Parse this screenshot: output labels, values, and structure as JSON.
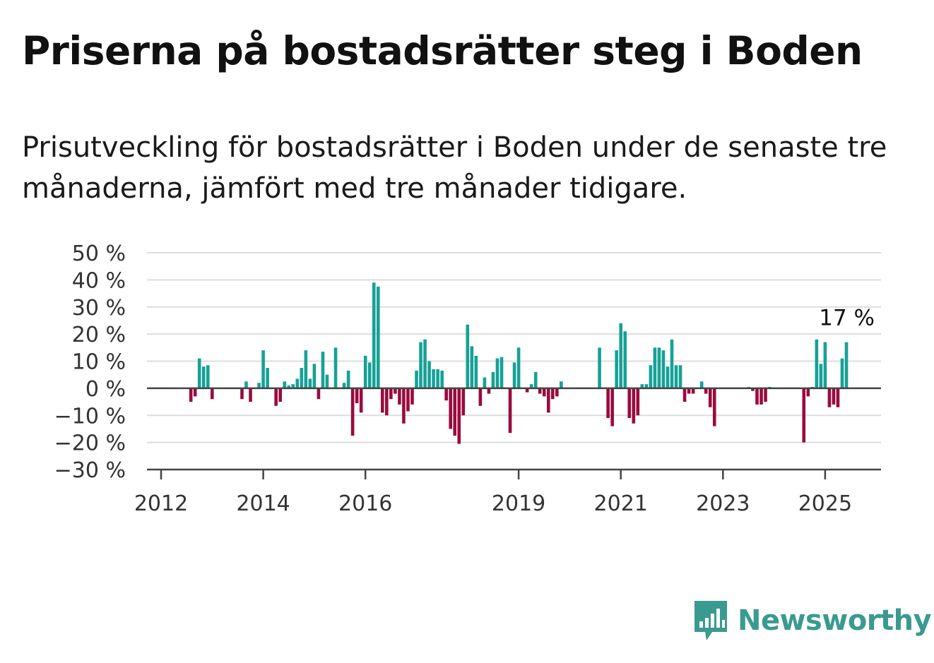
{
  "title": "Priserna på bostadsrätter steg i Boden",
  "subtitle": "Prisutveckling för bostadsrätter i Boden under de senaste tre månaderna, jämfört med tre månader tidigare.",
  "brand": {
    "name": "Newsworthy",
    "icon": "newsworthy-bar-chart-icon",
    "color": "#3a9a90"
  },
  "colors": {
    "positive": "#16a196",
    "negative": "#9a0a3e",
    "grid": "#dddddd",
    "zero_line": "#444444"
  },
  "chart_data": {
    "type": "bar",
    "title": "",
    "xlabel": "",
    "ylabel": "",
    "ylim": [
      -30,
      50
    ],
    "y_ticks": [
      -30,
      -20,
      -10,
      0,
      10,
      20,
      30,
      40,
      50
    ],
    "y_tick_labels": [
      "−30 %",
      "−20 %",
      "−10 %",
      "0 %",
      "10 %",
      "20 %",
      "30 %",
      "40 %",
      "50 %"
    ],
    "x_range": [
      "2012-01",
      "2026-06"
    ],
    "x_ticks": [
      "2012",
      "2014",
      "2016",
      "2019",
      "2021",
      "2023",
      "2025"
    ],
    "grid": true,
    "annotation": {
      "x": "2025-06",
      "y": 17,
      "label": "17 %"
    },
    "points": [
      {
        "x": "2012-08",
        "y": -5
      },
      {
        "x": "2012-09",
        "y": -3
      },
      {
        "x": "2012-10",
        "y": 11
      },
      {
        "x": "2012-11",
        "y": 8
      },
      {
        "x": "2012-12",
        "y": 8.5
      },
      {
        "x": "2013-01",
        "y": -4
      },
      {
        "x": "2013-08",
        "y": -4
      },
      {
        "x": "2013-09",
        "y": 2.5
      },
      {
        "x": "2013-10",
        "y": -5
      },
      {
        "x": "2013-12",
        "y": 2
      },
      {
        "x": "2014-01",
        "y": 14
      },
      {
        "x": "2014-02",
        "y": 7.5
      },
      {
        "x": "2014-04",
        "y": -6.5
      },
      {
        "x": "2014-05",
        "y": -5
      },
      {
        "x": "2014-06",
        "y": 2.5
      },
      {
        "x": "2014-07",
        "y": 1
      },
      {
        "x": "2014-08",
        "y": 1.5
      },
      {
        "x": "2014-09",
        "y": 3.5
      },
      {
        "x": "2014-10",
        "y": 7.5
      },
      {
        "x": "2014-11",
        "y": 14
      },
      {
        "x": "2014-12",
        "y": 3.5
      },
      {
        "x": "2015-01",
        "y": 9
      },
      {
        "x": "2015-02",
        "y": -4
      },
      {
        "x": "2015-03",
        "y": 13.5
      },
      {
        "x": "2015-04",
        "y": 5
      },
      {
        "x": "2015-06",
        "y": 15
      },
      {
        "x": "2015-08",
        "y": 2
      },
      {
        "x": "2015-09",
        "y": 6.5
      },
      {
        "x": "2015-10",
        "y": -17.5
      },
      {
        "x": "2015-11",
        "y": -5.5
      },
      {
        "x": "2015-12",
        "y": -9
      },
      {
        "x": "2016-01",
        "y": 12
      },
      {
        "x": "2016-02",
        "y": 9.5
      },
      {
        "x": "2016-03",
        "y": 39
      },
      {
        "x": "2016-04",
        "y": 37.5
      },
      {
        "x": "2016-05",
        "y": -9
      },
      {
        "x": "2016-06",
        "y": -10
      },
      {
        "x": "2016-07",
        "y": -4
      },
      {
        "x": "2016-08",
        "y": -2
      },
      {
        "x": "2016-09",
        "y": -6
      },
      {
        "x": "2016-10",
        "y": -13
      },
      {
        "x": "2016-11",
        "y": -8.5
      },
      {
        "x": "2016-12",
        "y": -6
      },
      {
        "x": "2017-01",
        "y": 6.5
      },
      {
        "x": "2017-02",
        "y": 17
      },
      {
        "x": "2017-03",
        "y": 18
      },
      {
        "x": "2017-04",
        "y": 10
      },
      {
        "x": "2017-05",
        "y": 7
      },
      {
        "x": "2017-06",
        "y": 7
      },
      {
        "x": "2017-07",
        "y": 6.5
      },
      {
        "x": "2017-08",
        "y": -4.5
      },
      {
        "x": "2017-09",
        "y": -15
      },
      {
        "x": "2017-10",
        "y": -17.5
      },
      {
        "x": "2017-11",
        "y": -20.5
      },
      {
        "x": "2017-12",
        "y": -10
      },
      {
        "x": "2018-01",
        "y": 23.5
      },
      {
        "x": "2018-02",
        "y": 15.5
      },
      {
        "x": "2018-03",
        "y": 12
      },
      {
        "x": "2018-04",
        "y": -6.5
      },
      {
        "x": "2018-05",
        "y": 4
      },
      {
        "x": "2018-06",
        "y": -2
      },
      {
        "x": "2018-07",
        "y": 6
      },
      {
        "x": "2018-08",
        "y": 11
      },
      {
        "x": "2018-09",
        "y": 11.5
      },
      {
        "x": "2018-11",
        "y": -16.5
      },
      {
        "x": "2018-12",
        "y": 9.5
      },
      {
        "x": "2019-01",
        "y": 15
      },
      {
        "x": "2019-03",
        "y": -1.5
      },
      {
        "x": "2019-04",
        "y": 1.5
      },
      {
        "x": "2019-05",
        "y": 6
      },
      {
        "x": "2019-06",
        "y": -2
      },
      {
        "x": "2019-07",
        "y": -3
      },
      {
        "x": "2019-08",
        "y": -9
      },
      {
        "x": "2019-09",
        "y": -4
      },
      {
        "x": "2019-10",
        "y": -3
      },
      {
        "x": "2019-11",
        "y": 2.5
      },
      {
        "x": "2020-08",
        "y": 15
      },
      {
        "x": "2020-10",
        "y": -11
      },
      {
        "x": "2020-11",
        "y": -14
      },
      {
        "x": "2020-12",
        "y": 14
      },
      {
        "x": "2021-01",
        "y": 24
      },
      {
        "x": "2021-02",
        "y": 21
      },
      {
        "x": "2021-03",
        "y": -11
      },
      {
        "x": "2021-04",
        "y": -13
      },
      {
        "x": "2021-05",
        "y": -10
      },
      {
        "x": "2021-06",
        "y": 1.5
      },
      {
        "x": "2021-07",
        "y": 1.5
      },
      {
        "x": "2021-08",
        "y": 8.5
      },
      {
        "x": "2021-09",
        "y": 15
      },
      {
        "x": "2021-10",
        "y": 15
      },
      {
        "x": "2021-11",
        "y": 14
      },
      {
        "x": "2021-12",
        "y": 8
      },
      {
        "x": "2022-01",
        "y": 18
      },
      {
        "x": "2022-02",
        "y": 8.5
      },
      {
        "x": "2022-03",
        "y": 8.5
      },
      {
        "x": "2022-04",
        "y": -5
      },
      {
        "x": "2022-05",
        "y": -2
      },
      {
        "x": "2022-06",
        "y": -2
      },
      {
        "x": "2022-08",
        "y": 2.5
      },
      {
        "x": "2022-09",
        "y": -2
      },
      {
        "x": "2022-10",
        "y": -7
      },
      {
        "x": "2022-11",
        "y": -14
      },
      {
        "x": "2023-07",
        "y": 0.5
      },
      {
        "x": "2023-08",
        "y": -1
      },
      {
        "x": "2023-09",
        "y": -6
      },
      {
        "x": "2023-10",
        "y": -6
      },
      {
        "x": "2023-11",
        "y": -5
      },
      {
        "x": "2023-12",
        "y": 0.5
      },
      {
        "x": "2024-08",
        "y": -20
      },
      {
        "x": "2024-09",
        "y": -3
      },
      {
        "x": "2024-10",
        "y": 0.5
      },
      {
        "x": "2024-11",
        "y": 18
      },
      {
        "x": "2024-12",
        "y": 9
      },
      {
        "x": "2025-01",
        "y": 17
      },
      {
        "x": "2025-02",
        "y": -7
      },
      {
        "x": "2025-03",
        "y": -6
      },
      {
        "x": "2025-04",
        "y": -7
      },
      {
        "x": "2025-05",
        "y": 11
      },
      {
        "x": "2025-06",
        "y": 17
      }
    ]
  }
}
